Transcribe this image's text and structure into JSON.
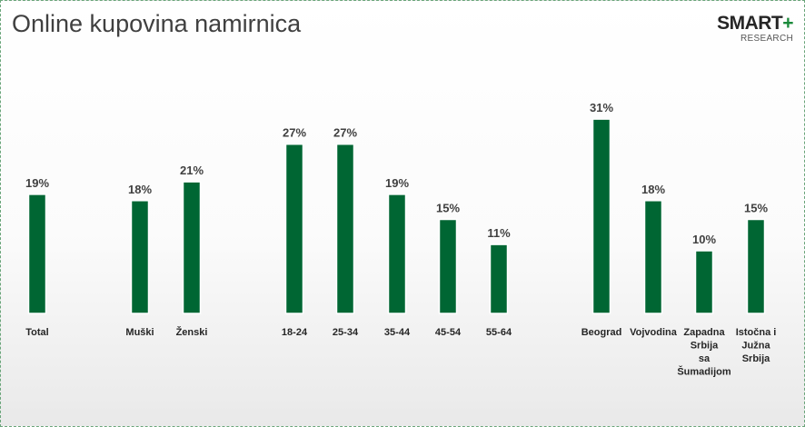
{
  "title": "Online kupovina namirnica",
  "logo": {
    "main": "SMART",
    "plus": "+",
    "sub": "RESEARCH"
  },
  "colors": {
    "bar": "#006633",
    "brand_plus": "#1a8a3a"
  },
  "chart_data": {
    "type": "bar",
    "title": "Online kupovina namirnica",
    "unit": "%",
    "grid": false,
    "legend": "none",
    "ylim": [
      0,
      31
    ],
    "categories": [
      "Total",
      "Muški",
      "Ženski",
      "18-24",
      "25-34",
      "35-44",
      "45-54",
      "55-64",
      "Beograd",
      "Vojvodina",
      "Zapadna Srbija sa Šumadijom",
      "Istočna i Južna Srbija"
    ],
    "category_lines": [
      [
        "Total"
      ],
      [
        "Muški"
      ],
      [
        "Ženski"
      ],
      [
        "18-24"
      ],
      [
        "25-34"
      ],
      [
        "35-44"
      ],
      [
        "45-54"
      ],
      [
        "55-64"
      ],
      [
        "Beograd"
      ],
      [
        "Vojvodina"
      ],
      [
        "Zapadna",
        "Srbija",
        "sa",
        "Šumadijom"
      ],
      [
        "Istočna i",
        "Južna",
        "Srbija"
      ]
    ],
    "values": [
      19,
      18,
      21,
      27,
      27,
      19,
      15,
      11,
      31,
      18,
      10,
      15
    ],
    "value_labels": [
      "19%",
      "18%",
      "21%",
      "27%",
      "27%",
      "19%",
      "15%",
      "11%",
      "31%",
      "18%",
      "10%",
      "15%"
    ]
  }
}
